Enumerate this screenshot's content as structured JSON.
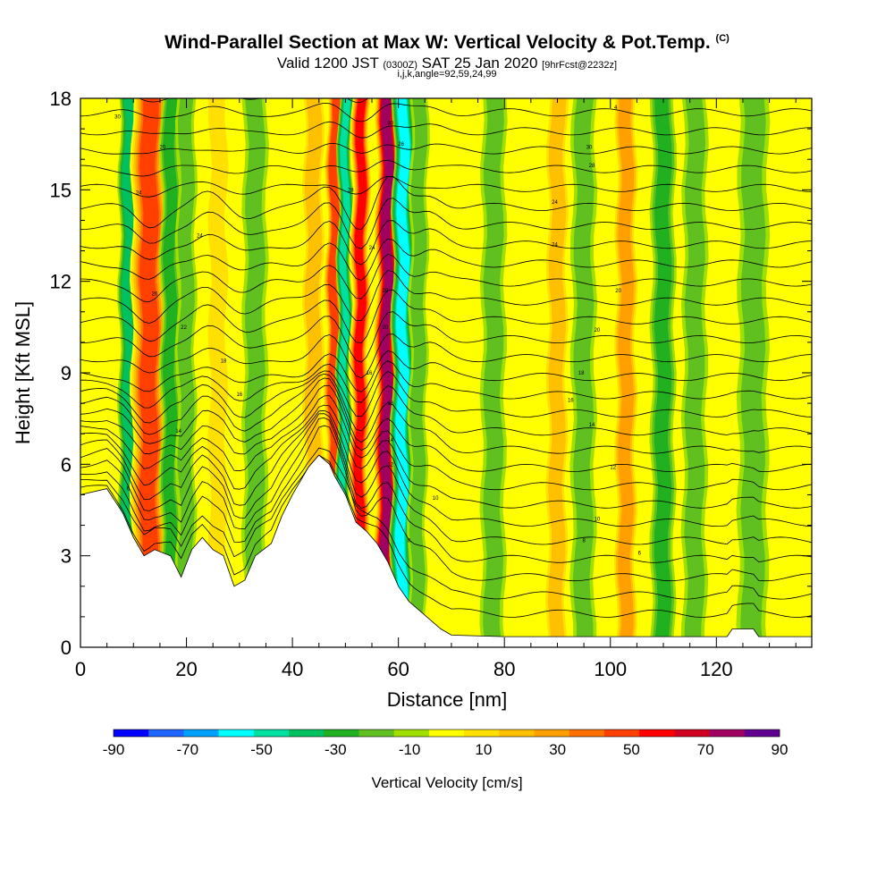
{
  "title": {
    "main": "Wind-Parallel Section at Max W: Vertical Velocity & Pot.Temp.",
    "copyright": "(C)"
  },
  "subtitle": {
    "valid": "Valid 1200 JST",
    "zulu": "(0300Z)",
    "date": "SAT 25 Jan 2020",
    "forecast": "[9hrFcst@2232z]",
    "params": "i,j,k,angle=92,59,24,99"
  },
  "chart_data": {
    "type": "heatmap",
    "xlabel": "Distance [nm]",
    "ylabel": "Height [Kft MSL]",
    "xlim": [
      0,
      138
    ],
    "ylim": [
      0,
      18
    ],
    "x_ticks": [
      0,
      20,
      40,
      60,
      80,
      100,
      120
    ],
    "y_ticks": [
      0,
      3,
      6,
      9,
      12,
      15,
      18
    ],
    "colorbar": {
      "label": "Vertical Velocity [cm/s]",
      "tick_labels": [
        "-90",
        "-70",
        "-50",
        "-30",
        "-10",
        "10",
        "30",
        "50",
        "70",
        "90"
      ],
      "levels": [
        -90,
        -80,
        -70,
        -60,
        -50,
        -40,
        -30,
        -20,
        -10,
        0,
        10,
        20,
        30,
        40,
        50,
        60,
        70,
        80,
        90
      ],
      "colors": [
        "#0000ff",
        "#1e64ff",
        "#00a0ff",
        "#00ffff",
        "#00e0a0",
        "#00c060",
        "#20b020",
        "#60c020",
        "#a0e000",
        "#ffff00",
        "#ffe000",
        "#ffc000",
        "#ffa000",
        "#ff7000",
        "#ff4000",
        "#ff0000",
        "#d00020",
        "#a00060",
        "#600090"
      ]
    },
    "velocity_columns": [
      {
        "x": 9,
        "value": -40,
        "width": 1.5
      },
      {
        "x": 13,
        "value": 60,
        "width": 3.0
      },
      {
        "x": 17,
        "value": -30,
        "width": 1.6
      },
      {
        "x": 20,
        "value": -20,
        "width": 1.6
      },
      {
        "x": 26,
        "value": 20,
        "width": 2.0
      },
      {
        "x": 33,
        "value": -20,
        "width": 2.0
      },
      {
        "x": 44,
        "value": 25,
        "width": 2.0
      },
      {
        "x": 48,
        "value": 60,
        "width": 1.5
      },
      {
        "x": 50,
        "value": -50,
        "width": 1.2
      },
      {
        "x": 53,
        "value": 70,
        "width": 1.6
      },
      {
        "x": 58,
        "value": 90,
        "width": 2.0
      },
      {
        "x": 61,
        "value": -60,
        "width": 1.8
      },
      {
        "x": 64,
        "value": -20,
        "width": 1.5
      },
      {
        "x": 78,
        "value": -20,
        "width": 2.0
      },
      {
        "x": 90,
        "value": 25,
        "width": 2.0
      },
      {
        "x": 95,
        "value": -20,
        "width": 2.0
      },
      {
        "x": 103,
        "value": 40,
        "width": 2.0
      },
      {
        "x": 110,
        "value": -30,
        "width": 2.0
      },
      {
        "x": 116,
        "value": -15,
        "width": 2.0
      },
      {
        "x": 127,
        "value": -15,
        "width": 2.5
      }
    ],
    "terrain": [
      {
        "x": 0,
        "h": 5.0
      },
      {
        "x": 5,
        "h": 5.2
      },
      {
        "x": 8,
        "h": 4.4
      },
      {
        "x": 10,
        "h": 3.6
      },
      {
        "x": 12,
        "h": 3.0
      },
      {
        "x": 14,
        "h": 3.2
      },
      {
        "x": 17,
        "h": 3.0
      },
      {
        "x": 19,
        "h": 2.3
      },
      {
        "x": 21,
        "h": 3.2
      },
      {
        "x": 23,
        "h": 3.6
      },
      {
        "x": 25,
        "h": 3.2
      },
      {
        "x": 27,
        "h": 3.0
      },
      {
        "x": 29,
        "h": 2.0
      },
      {
        "x": 31,
        "h": 2.2
      },
      {
        "x": 33,
        "h": 3.0
      },
      {
        "x": 36,
        "h": 3.4
      },
      {
        "x": 38,
        "h": 4.3
      },
      {
        "x": 40,
        "h": 5.0
      },
      {
        "x": 43,
        "h": 5.9
      },
      {
        "x": 45,
        "h": 6.3
      },
      {
        "x": 47,
        "h": 6.0
      },
      {
        "x": 48,
        "h": 5.6
      },
      {
        "x": 50,
        "h": 5.0
      },
      {
        "x": 52,
        "h": 4.1
      },
      {
        "x": 54,
        "h": 3.8
      },
      {
        "x": 56,
        "h": 3.4
      },
      {
        "x": 58,
        "h": 2.8
      },
      {
        "x": 60,
        "h": 2.0
      },
      {
        "x": 62,
        "h": 1.5
      },
      {
        "x": 64,
        "h": 1.2
      },
      {
        "x": 66,
        "h": 0.9
      },
      {
        "x": 68,
        "h": 0.6
      },
      {
        "x": 70,
        "h": 0.4
      },
      {
        "x": 80,
        "h": 0.35
      },
      {
        "x": 100,
        "h": 0.35
      },
      {
        "x": 122,
        "h": 0.35
      },
      {
        "x": 123,
        "h": 0.6
      },
      {
        "x": 127,
        "h": 0.6
      },
      {
        "x": 128,
        "h": 0.35
      },
      {
        "x": 138,
        "h": 0.35
      }
    ],
    "isentrope_labels": [
      {
        "x": 7,
        "y": 17.4,
        "text": "30"
      },
      {
        "x": 15.5,
        "y": 16.4,
        "text": "20"
      },
      {
        "x": 11,
        "y": 14.9,
        "text": "24"
      },
      {
        "x": 22.5,
        "y": 13.5,
        "text": "24"
      },
      {
        "x": 14,
        "y": 11.6,
        "text": "26"
      },
      {
        "x": 19.5,
        "y": 10.5,
        "text": "22"
      },
      {
        "x": 27,
        "y": 9.4,
        "text": "18"
      },
      {
        "x": 30,
        "y": 8.3,
        "text": "16"
      },
      {
        "x": 18.5,
        "y": 7.1,
        "text": "14"
      },
      {
        "x": 9,
        "y": 5.2,
        "text": "6"
      },
      {
        "x": 58.5,
        "y": 17.2,
        "text": "30"
      },
      {
        "x": 60.5,
        "y": 16.5,
        "text": "26"
      },
      {
        "x": 51,
        "y": 15.0,
        "text": "28"
      },
      {
        "x": 55,
        "y": 13.1,
        "text": "24"
      },
      {
        "x": 57.5,
        "y": 11.7,
        "text": "20"
      },
      {
        "x": 57.5,
        "y": 10.5,
        "text": "20"
      },
      {
        "x": 54.5,
        "y": 9.0,
        "text": "16"
      },
      {
        "x": 58.5,
        "y": 8.0,
        "text": "18"
      },
      {
        "x": 58.5,
        "y": 6.8,
        "text": "14"
      },
      {
        "x": 58.5,
        "y": 6.0,
        "text": "12"
      },
      {
        "x": 67,
        "y": 4.9,
        "text": "10"
      },
      {
        "x": 62,
        "y": 3.5,
        "text": "8"
      },
      {
        "x": 101,
        "y": 17.7,
        "text": "4"
      },
      {
        "x": 96,
        "y": 16.4,
        "text": "30"
      },
      {
        "x": 96.5,
        "y": 15.8,
        "text": "28"
      },
      {
        "x": 89.5,
        "y": 14.6,
        "text": "24"
      },
      {
        "x": 89.5,
        "y": 13.2,
        "text": "24"
      },
      {
        "x": 101.5,
        "y": 11.7,
        "text": "20"
      },
      {
        "x": 97.5,
        "y": 10.4,
        "text": "20"
      },
      {
        "x": 94.5,
        "y": 9.0,
        "text": "18"
      },
      {
        "x": 92.5,
        "y": 8.1,
        "text": "16"
      },
      {
        "x": 96.5,
        "y": 7.3,
        "text": "14"
      },
      {
        "x": 100.5,
        "y": 5.9,
        "text": "12"
      },
      {
        "x": 97.5,
        "y": 4.2,
        "text": "10"
      },
      {
        "x": 95,
        "y": 3.5,
        "text": "8"
      },
      {
        "x": 105.5,
        "y": 3.1,
        "text": "6"
      }
    ]
  }
}
